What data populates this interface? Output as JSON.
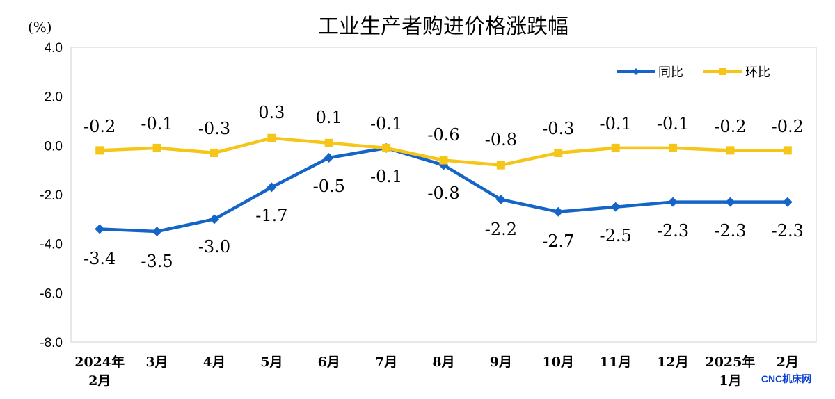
{
  "chart_data": {
    "type": "line",
    "title": "工业生产者购进价格涨跌幅",
    "ylabel": "(%)",
    "ylim": [
      -8.0,
      4.0
    ],
    "yticks": [
      "4.0",
      "2.0",
      "0.0",
      "-2.0",
      "-4.0",
      "-6.0",
      "-8.0"
    ],
    "ytick_values": [
      4,
      2,
      0,
      -2,
      -4,
      -6,
      -8
    ],
    "categories": [
      [
        "2024年",
        "2月"
      ],
      [
        "3月"
      ],
      [
        "4月"
      ],
      [
        "5月"
      ],
      [
        "6月"
      ],
      [
        "7月"
      ],
      [
        "8月"
      ],
      [
        "9月"
      ],
      [
        "10月"
      ],
      [
        "11月"
      ],
      [
        "12月"
      ],
      [
        "2025年",
        "1月"
      ],
      [
        "2月"
      ]
    ],
    "series": [
      {
        "name": "同比",
        "color": "#1565c8",
        "marker": "diamond",
        "values": [
          -3.4,
          -3.5,
          -3.0,
          -1.7,
          -0.5,
          -0.1,
          -0.8,
          -2.2,
          -2.7,
          -2.5,
          -2.3,
          -2.3,
          -2.3
        ],
        "labels": [
          "-3.4",
          "-3.5",
          "-3.0",
          "-1.7",
          "-0.5",
          "-0.1",
          "-0.8",
          "-2.2",
          "-2.7",
          "-2.5",
          "-2.3",
          "-2.3",
          "-2.3"
        ]
      },
      {
        "name": "环比",
        "color": "#f5c518",
        "marker": "square",
        "values": [
          -0.2,
          -0.1,
          -0.3,
          0.3,
          0.1,
          -0.1,
          -0.6,
          -0.8,
          -0.3,
          -0.1,
          -0.1,
          -0.2,
          -0.2
        ],
        "labels": [
          "-0.2",
          "-0.1",
          "-0.3",
          "0.3",
          "0.1",
          "-0.1",
          "-0.6",
          "-0.8",
          "-0.3",
          "-0.1",
          "-0.1",
          "-0.2",
          "-0.2"
        ]
      }
    ],
    "legend": "top-right",
    "grid": false
  },
  "watermark": "CNC机床网"
}
